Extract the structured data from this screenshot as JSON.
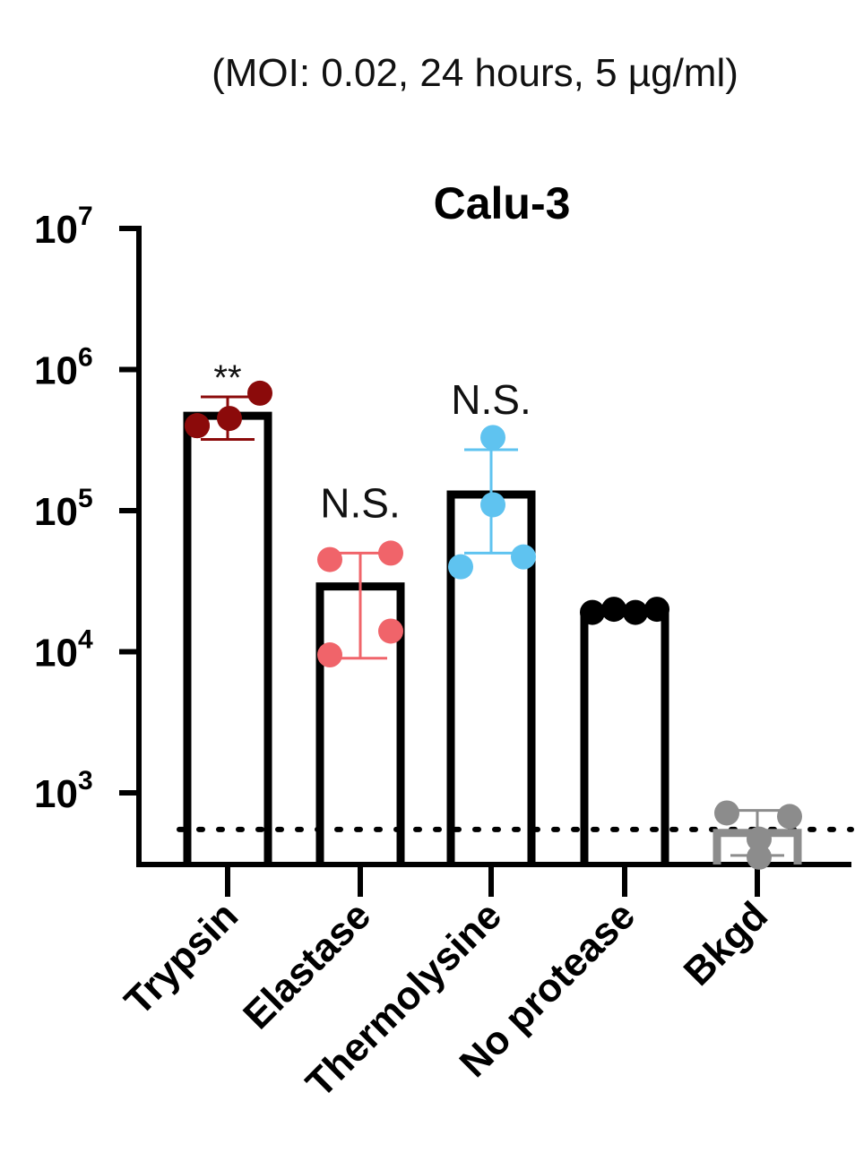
{
  "header": {
    "conditions": "(MOI: 0.02, 24 hours, 5 µg/ml)"
  },
  "colors": {
    "trypsin": "#8b0a0a",
    "elastase": "#f0646a",
    "thermolysine": "#5fc3f0",
    "no_protease": "#000000",
    "bkgd": "#8c8c8c",
    "axis": "#000000"
  },
  "chart_data": {
    "type": "bar",
    "title": "Calu-3",
    "subtitle": "(MOI: 0.02, 24 hours, 5 µg/ml)",
    "xlabel": "",
    "ylabel": "",
    "yscale": "log",
    "ylim": [
      300,
      10000000
    ],
    "yticks": [
      {
        "value": 1000,
        "base": "10",
        "exp": "3"
      },
      {
        "value": 10000,
        "base": "10",
        "exp": "4"
      },
      {
        "value": 100000,
        "base": "10",
        "exp": "5"
      },
      {
        "value": 1000000,
        "base": "10",
        "exp": "6"
      },
      {
        "value": 10000000,
        "base": "10",
        "exp": "7"
      }
    ],
    "detection_limit": 550,
    "categories": [
      "Trypsin",
      "Elastase",
      "Thermolysine",
      "No protease",
      "Bkgd"
    ],
    "series": [
      {
        "category": "Trypsin",
        "mean": 470000,
        "err_low": 320000,
        "err_high": 640000,
        "points": [
          400000,
          450000,
          400000,
          680000
        ],
        "significance": "**",
        "color": "#8b0a0a"
      },
      {
        "category": "Elastase",
        "mean": 29000,
        "err_low": 9000,
        "err_high": 50000,
        "points": [
          9500,
          45000,
          14000,
          50000
        ],
        "significance": "N.S.",
        "color": "#f0646a"
      },
      {
        "category": "Thermolysine",
        "mean": 130000,
        "err_low": 50000,
        "err_high": 270000,
        "points": [
          40000,
          110000,
          330000,
          47000
        ],
        "significance": "N.S.",
        "color": "#5fc3f0"
      },
      {
        "category": "No protease",
        "mean": 19000,
        "err_low": 18000,
        "err_high": 20000,
        "points": [
          19000,
          20000,
          19000,
          20000
        ],
        "significance": "",
        "color": "#000000"
      },
      {
        "category": "Bkgd",
        "mean": 520,
        "err_low": 360,
        "err_high": 750,
        "points": [
          720,
          470,
          350,
          680
        ],
        "significance": "",
        "color": "#8c8c8c"
      }
    ],
    "grid": false,
    "legend": "none"
  }
}
